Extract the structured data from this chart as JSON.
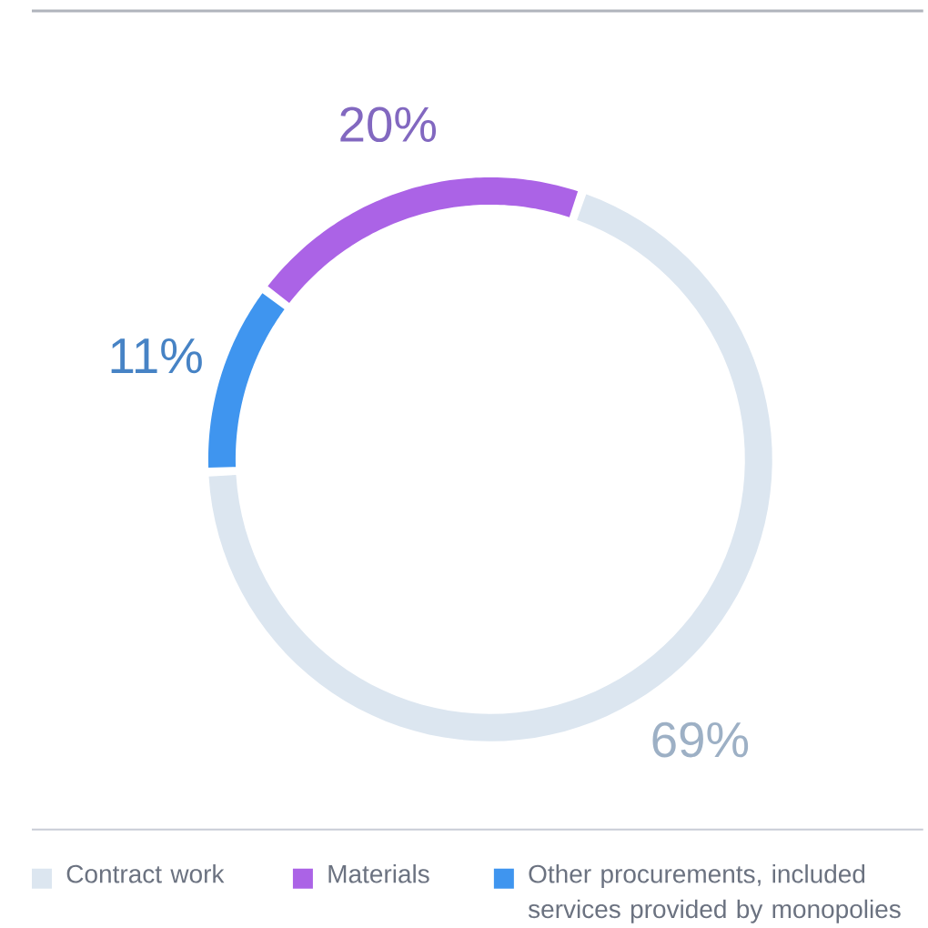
{
  "chart_data": {
    "type": "donut",
    "categories": [
      "Contract work",
      "Materials",
      "Other procurements, included services provided by monopolies"
    ],
    "values": [
      69,
      20,
      11
    ],
    "colors": [
      "#dce6f0",
      "#ab63e6",
      "#3f95ef"
    ],
    "value_labels": [
      "69%",
      "20%",
      "11%"
    ],
    "legend": "bottom"
  }
}
